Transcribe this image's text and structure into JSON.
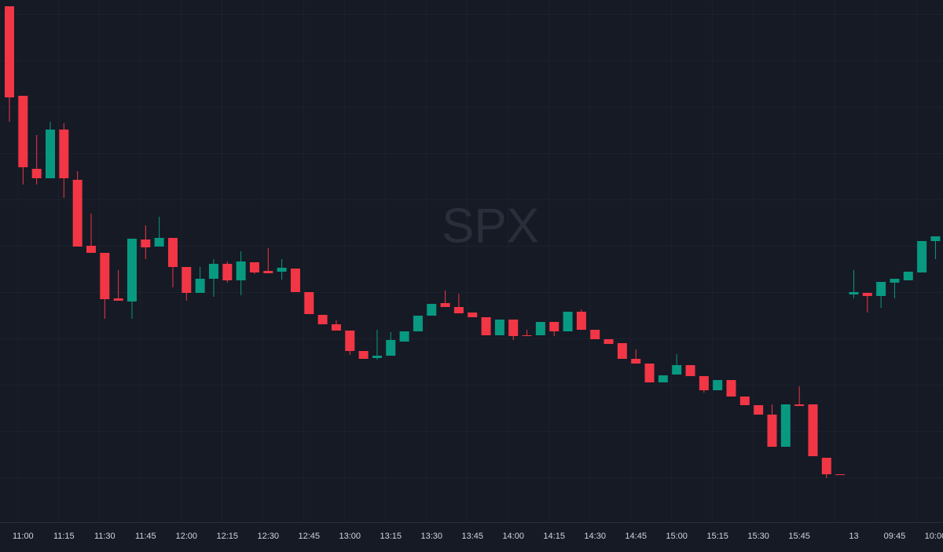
{
  "chart_data": {
    "type": "candlestick",
    "watermark": "SPX",
    "categories": [
      null,
      "11:00",
      null,
      null,
      "11:15",
      null,
      null,
      "11:30",
      null,
      null,
      "11:45",
      null,
      null,
      "12:00",
      null,
      null,
      "12:15",
      null,
      null,
      "12:30",
      null,
      null,
      "12:45",
      null,
      null,
      "13:00",
      null,
      null,
      "13:15",
      null,
      null,
      "13:30",
      null,
      null,
      "13:45",
      null,
      null,
      "14:00",
      null,
      null,
      "14:15",
      null,
      null,
      "14:30",
      null,
      null,
      "14:45",
      null,
      null,
      "15:00",
      null,
      null,
      "15:15",
      null,
      null,
      "15:30",
      null,
      null,
      "15:45",
      null,
      null,
      null,
      "13",
      null,
      null,
      "09:45",
      null,
      null,
      "10:00"
    ],
    "open": [
      657,
      543,
      450,
      438,
      500,
      436,
      352,
      343,
      285,
      281,
      360,
      351,
      362,
      325,
      292,
      310,
      329,
      308,
      331,
      320,
      319,
      323,
      293,
      264,
      252,
      244,
      218,
      209,
      212,
      230,
      243,
      263,
      279,
      274,
      267,
      261,
      238,
      258,
      238,
      238,
      255,
      243,
      268,
      245,
      233,
      228,
      208,
      202,
      178,
      188,
      200,
      186,
      168,
      181,
      160,
      149,
      137,
      96,
      150,
      150,
      82,
      61,
      290,
      292,
      288,
      305,
      308,
      318,
      358
    ],
    "high": [
      657,
      543,
      493,
      510,
      508,
      447,
      393,
      343,
      321,
      361,
      378,
      389,
      362,
      325,
      325,
      335,
      332,
      345,
      331,
      349,
      335,
      323,
      293,
      264,
      257,
      244,
      218,
      245,
      242,
      243,
      263,
      278,
      295,
      291,
      267,
      261,
      258,
      258,
      245,
      255,
      255,
      268,
      271,
      245,
      233,
      228,
      220,
      202,
      187,
      214,
      200,
      186,
      181,
      181,
      160,
      149,
      150,
      150,
      173,
      150,
      82,
      61,
      321,
      292,
      306,
      310,
      319,
      358,
      364
    ],
    "low": [
      510,
      430,
      430,
      438,
      413,
      351,
      343,
      259,
      282,
      259,
      335,
      351,
      299,
      282,
      292,
      287,
      305,
      289,
      316,
      317,
      309,
      293,
      265,
      252,
      244,
      213,
      208,
      207,
      212,
      230,
      243,
      263,
      274,
      266,
      261,
      238,
      238,
      232,
      237,
      238,
      237,
      243,
      245,
      233,
      227,
      208,
      202,
      178,
      178,
      188,
      186,
      165,
      168,
      160,
      149,
      137,
      96,
      96,
      148,
      84,
      56,
      60,
      285,
      267,
      273,
      285,
      308,
      318,
      335
    ],
    "close": [
      541,
      452,
      438,
      500,
      438,
      351,
      343,
      284,
      282,
      361,
      350,
      362,
      325,
      292,
      310,
      329,
      308,
      332,
      318,
      317,
      324,
      293,
      265,
      252,
      244,
      218,
      208,
      212,
      232,
      243,
      263,
      278,
      274,
      266,
      261,
      238,
      258,
      237,
      237,
      255,
      243,
      268,
      245,
      233,
      227,
      208,
      202,
      178,
      187,
      200,
      186,
      168,
      181,
      160,
      149,
      137,
      96,
      150,
      148,
      84,
      61,
      60,
      293,
      288,
      306,
      310,
      319,
      358,
      364
    ],
    "up_color": "#089981",
    "down_color": "#f23645",
    "ylim": [
      0,
      665
    ]
  }
}
